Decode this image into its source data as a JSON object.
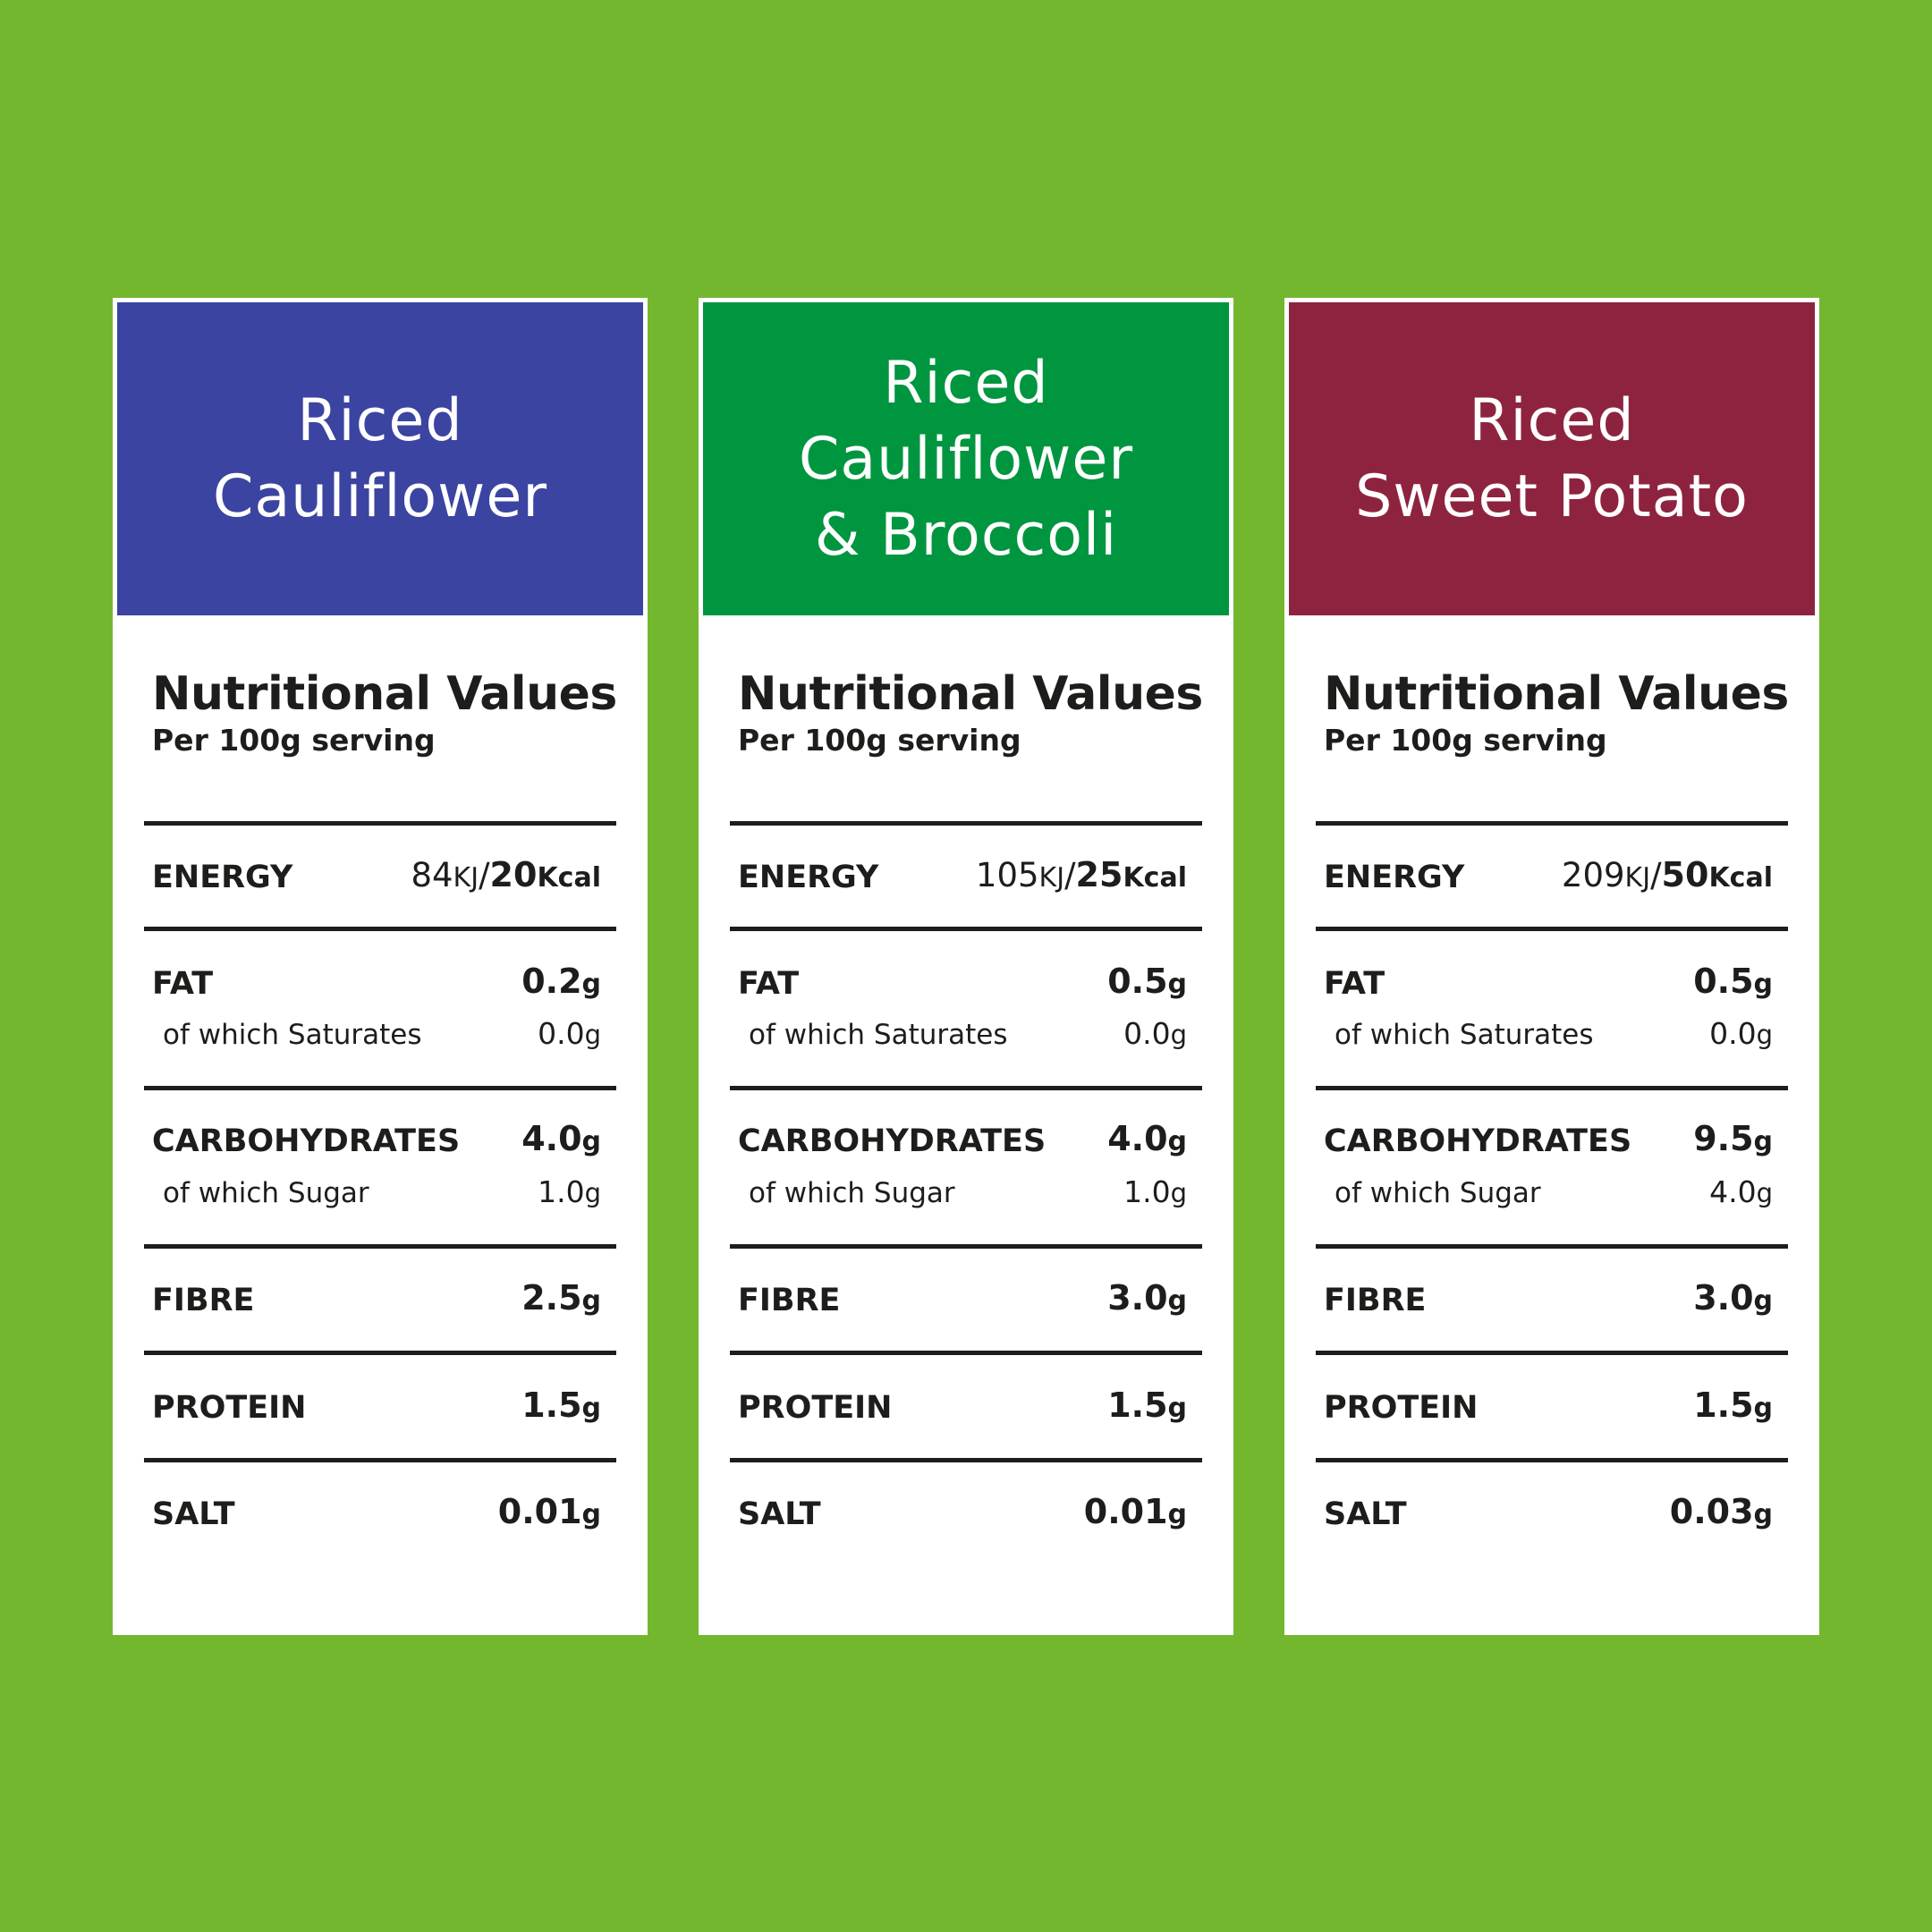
{
  "colors": {
    "background": "#73b72f"
  },
  "panels": [
    {
      "header_color": "#3b44a0",
      "title": "Riced\nCauliflower",
      "nv_title": "Nutritional Values",
      "nv_subtitle": "Per 100g serving",
      "energy": {
        "label": "ENERGY",
        "kj": "84",
        "kj_unit": "KJ",
        "sep": "/",
        "kcal": "20",
        "kcal_unit": "Kcal"
      },
      "fat": {
        "label": "FAT",
        "value": "0.2",
        "unit": "g",
        "sub_label": "of which Saturates",
        "sub_value": "0.0",
        "sub_unit": "g"
      },
      "carbs": {
        "label": "CARBOHYDRATES",
        "value": "4.0",
        "unit": "g",
        "sub_label": "of which Sugar",
        "sub_value": "1.0",
        "sub_unit": "g"
      },
      "fibre": {
        "label": "FIBRE",
        "value": "2.5",
        "unit": "g"
      },
      "protein": {
        "label": "PROTEIN",
        "value": "1.5",
        "unit": "g"
      },
      "salt": {
        "label": "SALT",
        "value": "0.01",
        "unit": "g"
      }
    },
    {
      "header_color": "#00963f",
      "title": "Riced\nCauliflower\n& Broccoli",
      "nv_title": "Nutritional Values",
      "nv_subtitle": "Per 100g serving",
      "energy": {
        "label": "ENERGY",
        "kj": "105",
        "kj_unit": "KJ",
        "sep": "/",
        "kcal": "25",
        "kcal_unit": "Kcal"
      },
      "fat": {
        "label": "FAT",
        "value": "0.5",
        "unit": "g",
        "sub_label": "of which Saturates",
        "sub_value": "0.0",
        "sub_unit": "g"
      },
      "carbs": {
        "label": "CARBOHYDRATES",
        "value": "4.0",
        "unit": "g",
        "sub_label": "of which Sugar",
        "sub_value": "1.0",
        "sub_unit": "g"
      },
      "fibre": {
        "label": "FIBRE",
        "value": "3.0",
        "unit": "g"
      },
      "protein": {
        "label": "PROTEIN",
        "value": "1.5",
        "unit": "g"
      },
      "salt": {
        "label": "SALT",
        "value": "0.01",
        "unit": "g"
      }
    },
    {
      "header_color": "#8e2340",
      "title": "Riced\nSweet Potato",
      "nv_title": "Nutritional Values",
      "nv_subtitle": "Per 100g serving",
      "energy": {
        "label": "ENERGY",
        "kj": "209",
        "kj_unit": "KJ",
        "sep": "/",
        "kcal": "50",
        "kcal_unit": "Kcal"
      },
      "fat": {
        "label": "FAT",
        "value": "0.5",
        "unit": "g",
        "sub_label": "of which Saturates",
        "sub_value": "0.0",
        "sub_unit": "g"
      },
      "carbs": {
        "label": "CARBOHYDRATES",
        "value": "9.5",
        "unit": "g",
        "sub_label": "of which Sugar",
        "sub_value": "4.0",
        "sub_unit": "g"
      },
      "fibre": {
        "label": "FIBRE",
        "value": "3.0",
        "unit": "g"
      },
      "protein": {
        "label": "PROTEIN",
        "value": "1.5",
        "unit": "g"
      },
      "salt": {
        "label": "SALT",
        "value": "0.03",
        "unit": "g"
      }
    }
  ]
}
